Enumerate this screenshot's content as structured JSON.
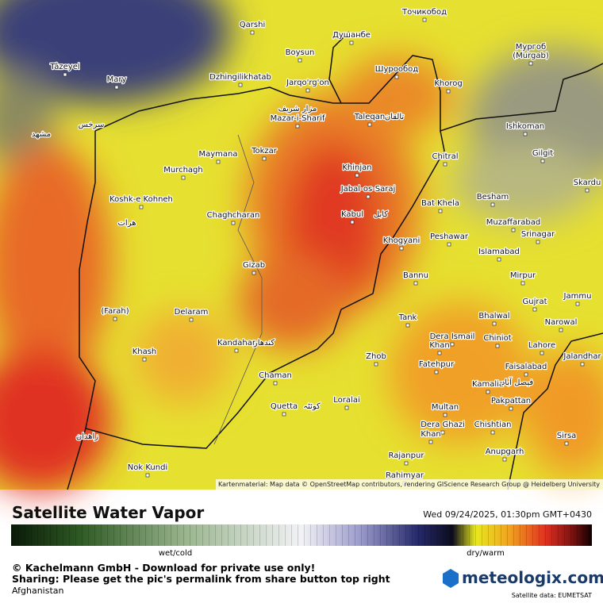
{
  "map": {
    "labels": [
      "Qarshi",
      "Boysun",
      "Душанбе",
      "Точикобод",
      "Tâzeyel",
      "Mary",
      "Dzhingilikhatab",
      "Jarqo'rg'on",
      "Шурообод",
      "Khorog",
      "Мургоб",
      "(Murgab)",
      "Mazar-i-Sharif",
      "Taleqan",
      "Ishkoman",
      "Maymana",
      "Tokzar",
      "Khinjan",
      "Chitral",
      "Gilgit",
      "Murchagh",
      "Jabal-os-Saraj",
      "Bat Khela",
      "Besham",
      "Skardu",
      "Koshk-e Kohneh",
      "Kabul",
      "Chaghcharan",
      "Muzaffarabad",
      "Peshawar",
      "Khogyani",
      "Srinagar",
      "Islamabad",
      "Gizab",
      "Bannu",
      "Mirpur",
      "Jammu",
      "Gujrat",
      "(Farah)",
      "Delaram",
      "Bhalwal",
      "Tank",
      "Narowal",
      "Dera Ismail",
      "Khan",
      "Chiniot",
      "Kandahar",
      "Khash",
      "Lahore",
      "Jalandhar",
      "Zhob",
      "Fatehpur",
      "Faisalabad",
      "Chaman",
      "Kamalia",
      "Loralai",
      "Quetta",
      "Multan",
      "Pakpattan",
      "Dera Ghazi",
      "Khan",
      "Chishtian",
      "Sirsa",
      "Anupgarh",
      "Nok Kundi",
      "Rajanpur",
      "Rahimyar"
    ],
    "native_labels": [
      "مشهد",
      "سرخس",
      "هرات",
      "کابل",
      "کوئٹہ",
      "زاهدان",
      "کندهار",
      "مزار شریف",
      "تالقان",
      "فیصل آباد"
    ],
    "attribution": "Kartenmaterial: Map data © OpenStreetMap contributors, rendering GIScience Research Group @ Heidelberg University"
  },
  "footer": {
    "title": "Satellite Water Vapor",
    "datetime": "Wed 09/24/2025, 01:30pm GMT+0430",
    "legend_low": "wet/cold",
    "legend_high": "dry/warm",
    "copyright": "© Kachelmann GmbH - Download for private use only!",
    "sharing": "Sharing: Please get the pic's permalink from share button top right",
    "region": "Afghanistan",
    "brand": "meteologix.com",
    "source": "Satellite data: EUMETSAT"
  }
}
